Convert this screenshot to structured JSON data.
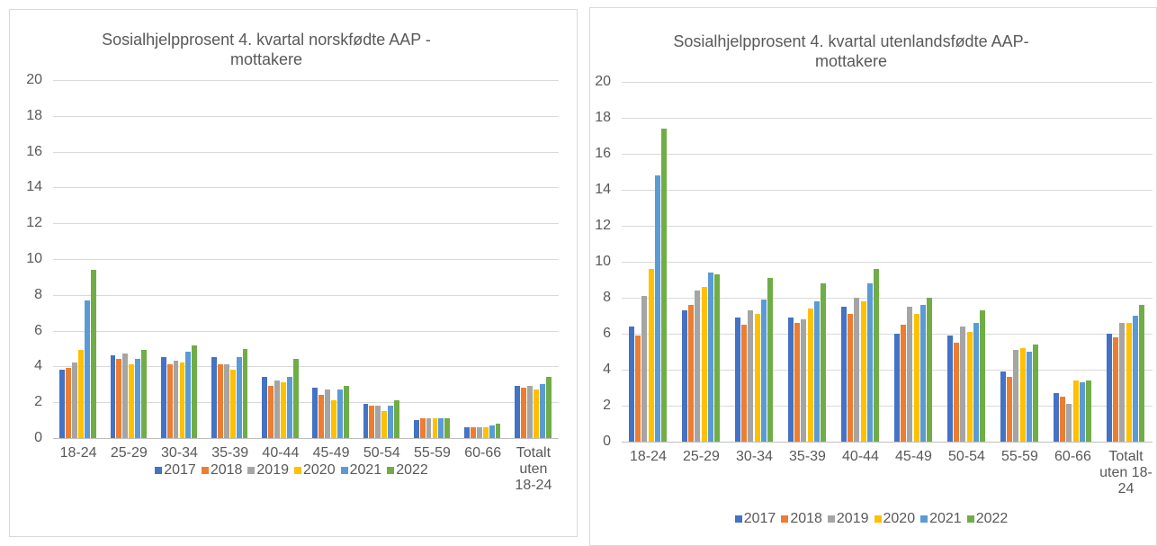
{
  "chart_data": [
    {
      "type": "bar",
      "title": "Sosialhjelpprosent 4. kvartal norskfødte AAP - mottakere",
      "categories": [
        "18-24",
        "25-29",
        "30-34",
        "35-39",
        "40-44",
        "45-49",
        "50-54",
        "55-59",
        "60-66",
        "Totalt uten 18-24"
      ],
      "series": [
        {
          "name": "2017",
          "color": "#4472c4",
          "values": [
            3.8,
            4.6,
            4.5,
            4.5,
            3.4,
            2.8,
            1.9,
            1.0,
            0.6,
            2.9
          ]
        },
        {
          "name": "2018",
          "color": "#ed7d31",
          "values": [
            3.9,
            4.4,
            4.1,
            4.1,
            2.9,
            2.4,
            1.8,
            1.1,
            0.6,
            2.8
          ]
        },
        {
          "name": "2019",
          "color": "#a5a5a5",
          "values": [
            4.2,
            4.7,
            4.3,
            4.1,
            3.2,
            2.7,
            1.8,
            1.1,
            0.6,
            2.9
          ]
        },
        {
          "name": "2020",
          "color": "#ffc000",
          "values": [
            4.9,
            4.1,
            4.2,
            3.8,
            3.1,
            2.1,
            1.5,
            1.1,
            0.6,
            2.7
          ]
        },
        {
          "name": "2021",
          "color": "#5b9bd5",
          "values": [
            7.7,
            4.4,
            4.8,
            4.5,
            3.4,
            2.7,
            1.8,
            1.1,
            0.7,
            3.0
          ]
        },
        {
          "name": "2022",
          "color": "#70ad47",
          "values": [
            9.4,
            4.9,
            5.2,
            5.0,
            4.4,
            2.9,
            2.1,
            1.1,
            0.8,
            3.4
          ]
        }
      ],
      "ylim": [
        0,
        20
      ],
      "yticks": [
        0,
        2,
        4,
        6,
        8,
        10,
        12,
        14,
        16,
        18,
        20
      ],
      "grid": true,
      "legend": "bottom"
    },
    {
      "type": "bar",
      "title": "Sosialhjelpprosent 4. kvartal utenlandsfødte AAP-mottakere",
      "categories": [
        "18-24",
        "25-29",
        "30-34",
        "35-39",
        "40-44",
        "45-49",
        "50-54",
        "55-59",
        "60-66",
        "Totalt uten 18-24"
      ],
      "series": [
        {
          "name": "2017",
          "color": "#4472c4",
          "values": [
            6.4,
            7.3,
            6.9,
            6.9,
            7.5,
            6.0,
            5.9,
            3.9,
            2.7,
            6.0
          ]
        },
        {
          "name": "2018",
          "color": "#ed7d31",
          "values": [
            5.9,
            7.6,
            6.5,
            6.6,
            7.1,
            6.5,
            5.5,
            3.6,
            2.5,
            5.8
          ]
        },
        {
          "name": "2019",
          "color": "#a5a5a5",
          "values": [
            8.1,
            8.4,
            7.3,
            6.8,
            8.0,
            7.5,
            6.4,
            5.1,
            2.1,
            6.6
          ]
        },
        {
          "name": "2020",
          "color": "#ffc000",
          "values": [
            9.6,
            8.6,
            7.1,
            7.4,
            7.8,
            7.1,
            6.1,
            5.2,
            3.4,
            6.6
          ]
        },
        {
          "name": "2021",
          "color": "#5b9bd5",
          "values": [
            14.8,
            9.4,
            7.9,
            7.8,
            8.8,
            7.6,
            6.6,
            5.0,
            3.3,
            7.0
          ]
        },
        {
          "name": "2022",
          "color": "#70ad47",
          "values": [
            17.4,
            9.3,
            9.1,
            8.8,
            9.6,
            8.0,
            7.3,
            5.4,
            3.4,
            7.6
          ]
        }
      ],
      "ylim": [
        0,
        20
      ],
      "yticks": [
        0,
        2,
        4,
        6,
        8,
        10,
        12,
        14,
        16,
        18,
        20
      ],
      "grid": true,
      "legend": "bottom"
    }
  ]
}
